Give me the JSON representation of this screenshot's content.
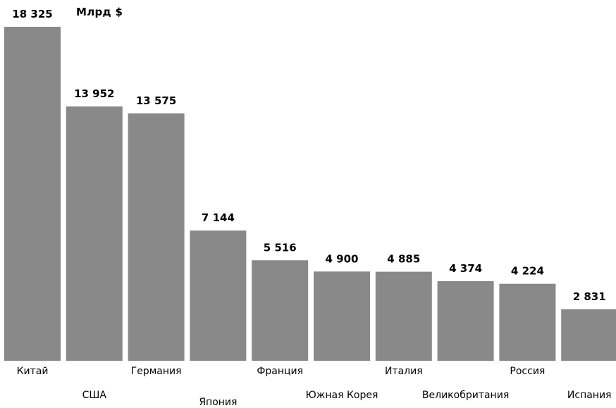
{
  "chart_data": {
    "type": "bar",
    "unit_label": "Млрд $",
    "categories": [
      "Китай",
      "США",
      "Германия",
      "Япония",
      "Франция",
      "Южная Корея",
      "Италия",
      "Великобритания",
      "Россия",
      "Испания"
    ],
    "values": [
      18325,
      13952,
      13575,
      7144,
      5516,
      4900,
      4885,
      4374,
      4224,
      2831
    ],
    "value_labels": [
      "18 325",
      "13 952",
      "13 575",
      "7 144",
      "5 516",
      "4 900",
      "4 885",
      "4 374",
      "4 224",
      "2 831"
    ],
    "bar_color": "#898989",
    "ylim": [
      0,
      18325
    ],
    "grid": false,
    "legend": "none"
  }
}
